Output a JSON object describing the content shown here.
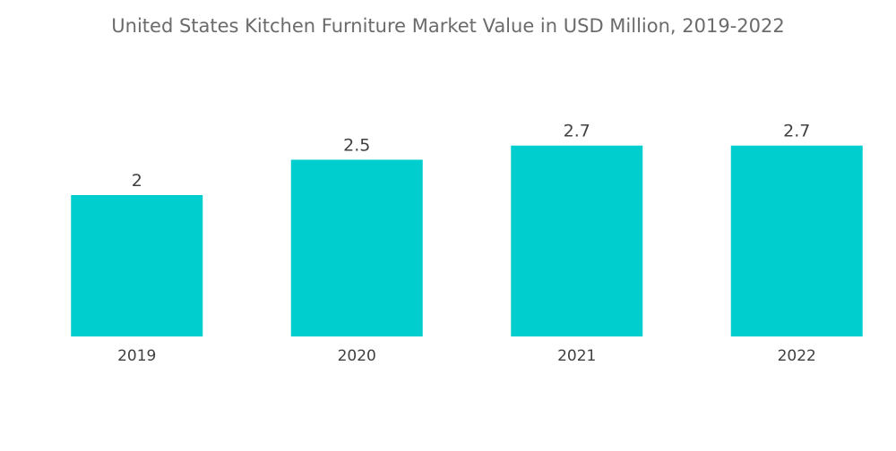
{
  "chart_data": {
    "type": "bar",
    "title": "United States Kitchen Furniture Market Value in USD Million, 2019-2022",
    "categories": [
      "2019",
      "2020",
      "2021",
      "2022"
    ],
    "values": [
      2,
      2.5,
      2.7,
      2.7
    ],
    "data_labels": [
      "2",
      "2.5",
      "2.7",
      "2.7"
    ],
    "xlabel": "",
    "ylabel": "",
    "ylim": [
      0,
      3
    ],
    "grid": false,
    "legend": "none",
    "color": "#00cdcd"
  }
}
